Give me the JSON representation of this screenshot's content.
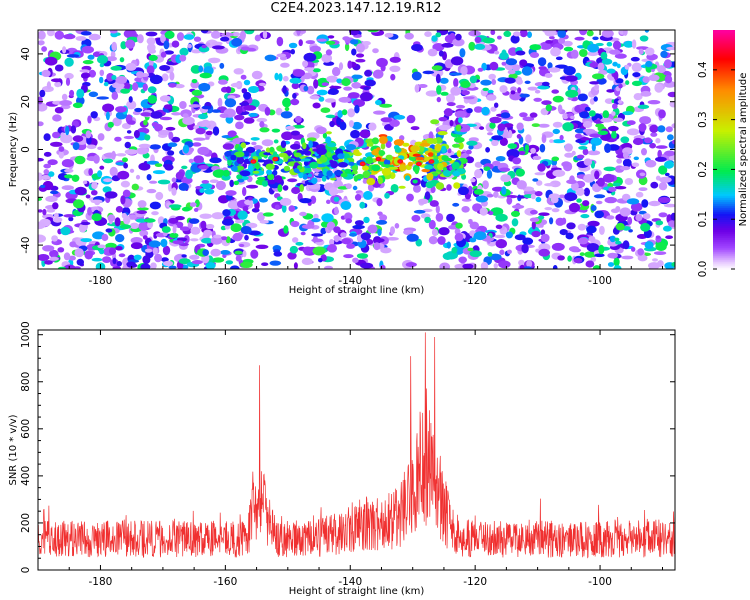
{
  "title": "C2E4.2023.147.12.19.R12",
  "chart_data": [
    {
      "type": "heatmap",
      "title": "C2E4.2023.147.12.19.R12",
      "xlabel": "Height of straight line (km)",
      "ylabel": "Frequency (Hz)",
      "xlim": [
        -190,
        -88
      ],
      "ylim": [
        -50,
        50
      ],
      "xticks": [
        -180,
        -160,
        -140,
        -120,
        -100
      ],
      "yticks": [
        -40,
        -20,
        0,
        20,
        40
      ],
      "colorbar": {
        "label": "Normalized spectral amplitude",
        "range": [
          0,
          0.48
        ],
        "ticks": [
          0.0,
          0.1,
          0.2,
          0.3,
          0.4
        ],
        "colormap": "rainbow (white-violet-blue-cyan-green-yellow-red-magenta)"
      },
      "features": [
        {
          "x_range": [
            -160,
            -122
          ],
          "y_center": -5,
          "y_halfwidth": 5,
          "peak_amplitude": 0.45,
          "peak_x": -131
        }
      ],
      "grid": false
    },
    {
      "type": "line",
      "xlabel": "Height of straight line (km)",
      "ylabel": "SNR (10 * v/v)",
      "xlim": [
        -190,
        -88
      ],
      "ylim": [
        0,
        1020
      ],
      "xticks": [
        -180,
        -160,
        -140,
        -120,
        -100
      ],
      "yticks": [
        0,
        200,
        400,
        600,
        800,
        1000
      ],
      "color": "#f03030",
      "baseline_mean": 150,
      "peaks": [
        {
          "x": -154.5,
          "value": 870
        },
        {
          "x": -128,
          "value": 1010
        },
        {
          "x": -126.5,
          "value": 990
        }
      ],
      "grid": false
    }
  ]
}
